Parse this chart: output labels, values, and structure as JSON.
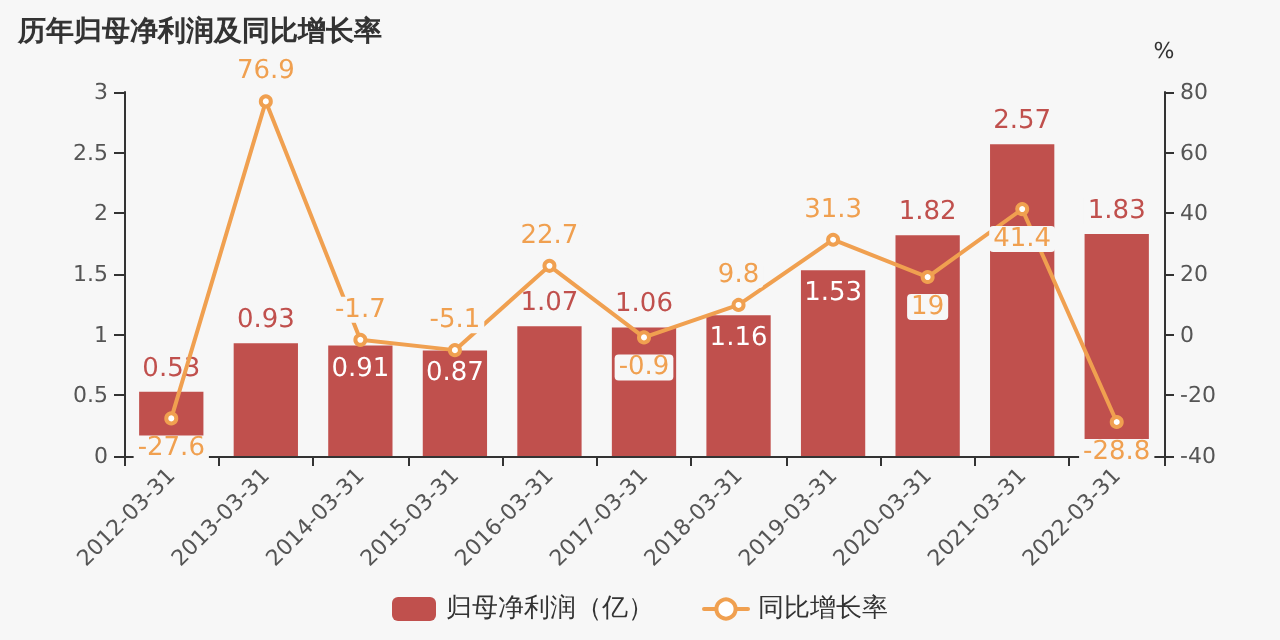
{
  "chart_data": {
    "type": "bar",
    "title": "历年归母净利润及同比增长率",
    "y2label": "%",
    "categories": [
      "2012-03-31",
      "2013-03-31",
      "2014-03-31",
      "2015-03-31",
      "2016-03-31",
      "2017-03-31",
      "2018-03-31",
      "2019-03-31",
      "2020-03-31",
      "2021-03-31",
      "2022-03-31"
    ],
    "series": [
      {
        "name": "归母净利润（亿）",
        "type": "bar",
        "color": "#c0504d",
        "values": [
          0.53,
          0.93,
          0.91,
          0.87,
          1.07,
          1.06,
          1.16,
          1.53,
          1.82,
          2.57,
          1.83
        ]
      },
      {
        "name": "同比增长率",
        "type": "line",
        "axis": "y2",
        "color": "#f0a050",
        "marker": "circle",
        "values": [
          -27.6,
          76.9,
          -1.7,
          -5.1,
          22.7,
          -0.9,
          9.8,
          31.3,
          19,
          41.4,
          -28.8
        ]
      }
    ],
    "ylim": [
      0,
      3
    ],
    "yticks": [
      0,
      0.5,
      1,
      1.5,
      2,
      2.5,
      3
    ],
    "y2lim": [
      -40,
      80
    ],
    "y2ticks": [
      -40,
      -20,
      0,
      20,
      40,
      60,
      80
    ],
    "data_labels": true,
    "grid": false,
    "legend": "bottom"
  }
}
